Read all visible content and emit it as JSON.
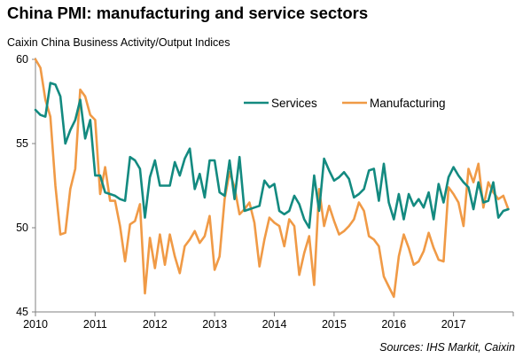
{
  "header": {
    "title": "China PMI: manufacturing and service sectors",
    "subtitle": "Caixin China Business Activity/Output  Indices"
  },
  "footer": {
    "source": "Sources: IHS Markit, Caixin"
  },
  "colors": {
    "services": "#138a80",
    "manufacturing": "#f09a46",
    "axis": "#808080"
  },
  "chart_data": {
    "type": "line",
    "title": "China PMI: manufacturing and service sectors",
    "xlabel": "",
    "ylabel": "",
    "ylim": [
      45,
      60
    ],
    "yticks": [
      45,
      50,
      55,
      60
    ],
    "xticks": [
      "2010",
      "2011",
      "2012",
      "2013",
      "2014",
      "2015",
      "2016",
      "2017"
    ],
    "grid": false,
    "legend_position": "top-center",
    "x_start": "2010-01",
    "x_frequency": "monthly",
    "series": [
      {
        "name": "Services",
        "values": [
          57.0,
          56.7,
          56.6,
          58.6,
          58.5,
          57.8,
          55.0,
          55.8,
          56.4,
          57.6,
          55.3,
          56.4,
          53.1,
          53.1,
          52.1,
          52.0,
          51.9,
          51.7,
          51.6,
          54.2,
          54.0,
          53.5,
          50.6,
          53.0,
          54.0,
          52.5,
          52.5,
          52.5,
          53.9,
          53.1,
          54.1,
          54.7,
          52.3,
          53.2,
          51.8,
          54.0,
          54.0,
          52.1,
          51.9,
          54.0,
          51.7,
          54.2,
          51.0,
          51.1,
          51.2,
          51.3,
          52.8,
          52.4,
          52.6,
          51.0,
          50.8,
          51.0,
          51.9,
          51.4,
          50.5,
          50.0,
          53.1,
          51.0,
          54.1,
          53.4,
          52.8,
          53.0,
          53.3,
          52.9,
          51.8,
          52.0,
          52.3,
          53.4,
          53.5,
          51.6,
          53.8,
          51.5,
          50.5,
          52.0,
          50.5,
          52.0,
          51.3,
          51.7,
          51.2,
          52.1,
          50.5,
          52.6,
          51.5,
          53.0,
          53.6,
          53.1,
          52.7,
          52.4,
          51.1,
          52.7,
          51.5,
          51.6,
          52.7,
          50.6,
          51.0,
          51.1
        ]
      },
      {
        "name": "Manufacturing",
        "values": [
          60.0,
          59.5,
          57.6,
          56.6,
          52.5,
          49.6,
          49.7,
          52.3,
          53.5,
          58.2,
          57.8,
          56.7,
          56.4,
          52.0,
          53.6,
          51.6,
          51.6,
          50.1,
          48.0,
          50.2,
          50.4,
          51.4,
          46.1,
          49.4,
          47.6,
          49.6,
          47.8,
          49.6,
          48.3,
          47.3,
          48.9,
          49.3,
          49.8,
          49.1,
          49.5,
          50.7,
          47.5,
          48.3,
          51.7,
          53.3,
          52.4,
          50.8,
          51.1,
          51.5,
          50.3,
          47.7,
          49.3,
          50.6,
          50.3,
          50.1,
          48.9,
          50.5,
          50.1,
          47.2,
          48.5,
          49.5,
          46.6,
          52.3,
          50.1,
          51.3,
          50.4,
          49.6,
          49.8,
          50.1,
          50.5,
          51.5,
          51.0,
          49.5,
          49.3,
          48.9,
          47.1,
          46.5,
          45.9,
          48.3,
          49.6,
          48.8,
          47.8,
          48.0,
          48.6,
          49.7,
          48.8,
          48.1,
          48.0,
          52.4,
          52.0,
          51.5,
          50.1,
          53.5,
          52.7,
          53.8,
          51.2,
          52.7,
          52.1,
          51.7,
          51.9,
          51.1
        ]
      }
    ]
  }
}
